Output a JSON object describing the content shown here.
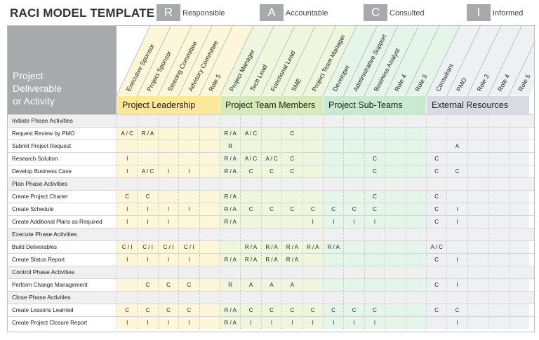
{
  "title": "RACI MODEL TEMPLATE",
  "legend": [
    {
      "letter": "R",
      "label": "Responsible"
    },
    {
      "letter": "A",
      "label": "Accountable"
    },
    {
      "letter": "C",
      "label": "Consulted"
    },
    {
      "letter": "I",
      "label": "Informed"
    }
  ],
  "row_header": [
    "Project",
    "Deliverable",
    "or Activity"
  ],
  "colors": {
    "gray_header": "#a7a9ac",
    "leadership_light": "#fdf6d8",
    "leadership_header": "#fde79a",
    "team_light": "#eef6de",
    "team_header": "#d6ebb7",
    "subteam_light": "#e4f5ea",
    "subteam_header": "#c7ead1",
    "external_light": "#eef0f3",
    "external_header": "#d8dce2",
    "section_row": "#f0f0f0",
    "section_label": "#e7e7e7"
  },
  "groups": [
    {
      "name": "Project Leadership",
      "roles": [
        "Executive Sponsor",
        "Project Sponsor",
        "Steering Committee",
        "Advisory Committee",
        "Role 5"
      ]
    },
    {
      "name": "Project Team Members",
      "roles": [
        "Project Manager",
        "Tech Lead",
        "Functional Lead",
        "SME",
        "Project Team Manager"
      ]
    },
    {
      "name": "Project Sub-Teams",
      "roles": [
        "Developer",
        "Administrative Support",
        "Business Analyst",
        "Role 4",
        "Role 5"
      ]
    },
    {
      "name": "External Resources",
      "roles": [
        "Consultant",
        "PMO",
        "Role 3",
        "Role 4",
        "Role 5"
      ]
    }
  ],
  "rows": [
    {
      "type": "section",
      "label": "Initiate Phase Activities"
    },
    {
      "type": "task",
      "label": "Request Review by PMO",
      "cells": [
        "A / C",
        "R / A",
        "",
        "",
        "",
        "R / A",
        "A / C",
        "",
        "C",
        "",
        "",
        "",
        "",
        "",
        "",
        "",
        "",
        "",
        "",
        ""
      ]
    },
    {
      "type": "task",
      "label": "Submit Project Request",
      "cells": [
        "",
        "",
        "",
        "",
        "",
        "R",
        "",
        "",
        "",
        "",
        "",
        "",
        "",
        "",
        "",
        "",
        "A",
        "",
        "",
        ""
      ]
    },
    {
      "type": "task",
      "label": "Research Solution",
      "cells": [
        "I",
        "",
        "",
        "",
        "",
        "R / A",
        "A / C",
        "A / C",
        "C",
        "",
        "",
        "",
        "C",
        "",
        "",
        "C",
        "",
        "",
        "",
        ""
      ]
    },
    {
      "type": "task",
      "label": "Develop Business Case",
      "cells": [
        "I",
        "A / C",
        "I",
        "I",
        "",
        "R / A",
        "C",
        "C",
        "C",
        "",
        "",
        "",
        "C",
        "",
        "",
        "C",
        "C",
        "",
        "",
        ""
      ]
    },
    {
      "type": "section",
      "label": "Plan Phase Activities"
    },
    {
      "type": "task",
      "label": "Create Project Charter",
      "cells": [
        "C",
        "C",
        "",
        "",
        "",
        "R / A",
        "",
        "",
        "",
        "",
        "",
        "",
        "C",
        "",
        "",
        "C",
        "",
        "",
        "",
        ""
      ]
    },
    {
      "type": "task",
      "label": "Create Schedule",
      "cells": [
        "I",
        "I",
        "I",
        "I",
        "",
        "R / A",
        "C",
        "C",
        "C",
        "C",
        "C",
        "C",
        "C",
        "",
        "",
        "C",
        "I",
        "",
        "",
        ""
      ]
    },
    {
      "type": "task",
      "label": "Create Additional Plans as Required",
      "cells": [
        "I",
        "I",
        "I",
        "",
        "",
        "R / A",
        "",
        "",
        "",
        "I",
        "I",
        "I",
        "I",
        "",
        "",
        "C",
        "I",
        "",
        "",
        ""
      ]
    },
    {
      "type": "section",
      "label": "Execute Phase Activities"
    },
    {
      "type": "task",
      "label": "Build Deliverables",
      "cells": [
        "C / I",
        "C / I",
        "C / I",
        "C / I",
        "",
        "",
        "R / A",
        "R / A",
        "R / A",
        "R / A",
        "R / A",
        "",
        "",
        "",
        "",
        "A / C",
        "",
        "",
        "",
        ""
      ]
    },
    {
      "type": "task",
      "label": "Create Status Report",
      "cells": [
        "I",
        "I",
        "I",
        "I",
        "",
        "R / A",
        "R / A",
        "R / A",
        "R / A",
        "",
        "",
        "",
        "",
        "",
        "",
        "C",
        "I",
        "",
        "",
        ""
      ]
    },
    {
      "type": "section",
      "label": "Control Phase Activities"
    },
    {
      "type": "task",
      "label": "Perform Change Management",
      "cells": [
        "",
        "C",
        "C",
        "C",
        "",
        "R",
        "A",
        "A",
        "A",
        "",
        "",
        "",
        "",
        "",
        "",
        "C",
        "I",
        "",
        "",
        ""
      ]
    },
    {
      "type": "section",
      "label": "Close Phase Activities"
    },
    {
      "type": "task",
      "label": "Create Lessons Learned",
      "cells": [
        "C",
        "C",
        "C",
        "C",
        "",
        "R / A",
        "C",
        "C",
        "C",
        "C",
        "C",
        "C",
        "C",
        "",
        "",
        "C",
        "C",
        "",
        "",
        ""
      ]
    },
    {
      "type": "task",
      "label": "Create Project Closure Report",
      "cells": [
        "I",
        "I",
        "I",
        "I",
        "",
        "R / A",
        "I",
        "I",
        "I",
        "I",
        "I",
        "I",
        "I",
        "",
        "",
        "",
        "I",
        "",
        "",
        ""
      ]
    }
  ]
}
